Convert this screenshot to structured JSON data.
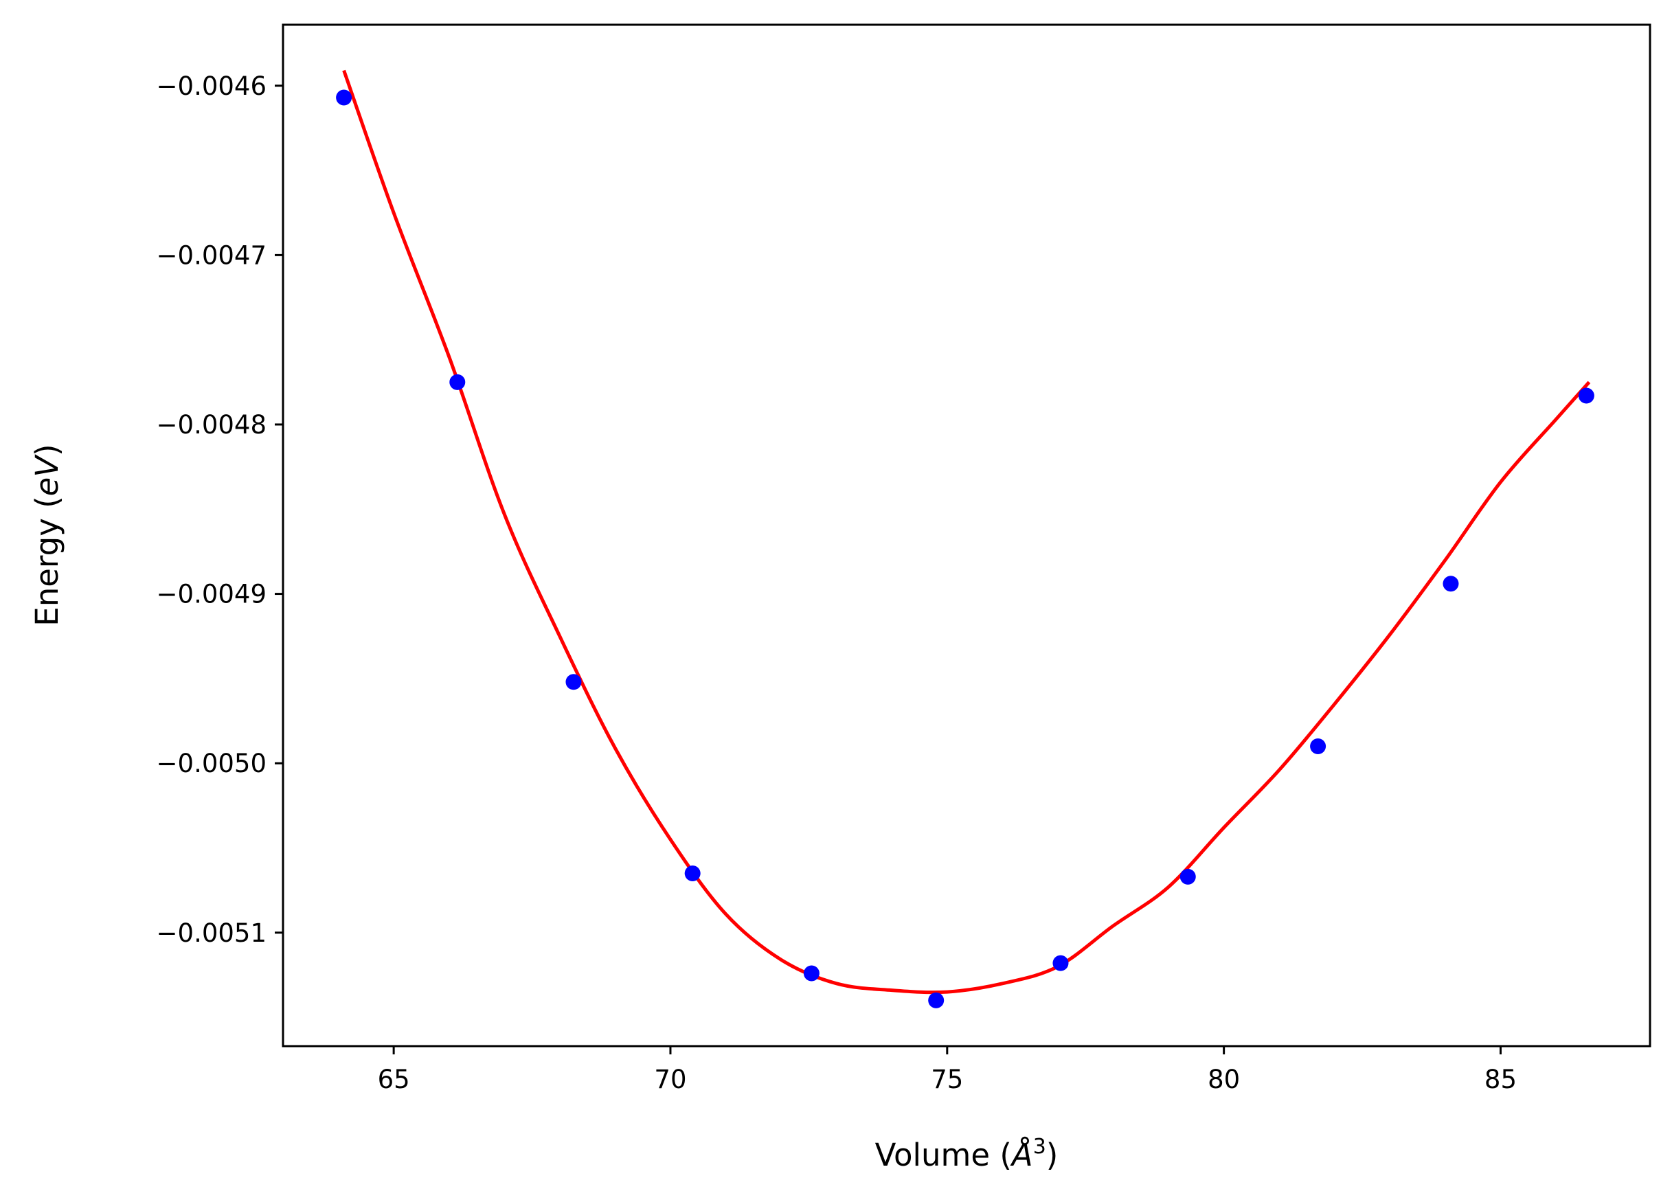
{
  "chart_data": {
    "type": "scatter",
    "title": "",
    "xlabel_main": "Volume (",
    "xlabel_symbol": "Å",
    "xlabel_sup": "3",
    "xlabel_close": ")",
    "ylabel_main": "Energy (",
    "ylabel_symbol": "eV",
    "ylabel_close": ")",
    "xlim": [
      63.0,
      87.7
    ],
    "ylim": [
      -0.005167,
      -0.004564
    ],
    "x_ticks": [
      {
        "value": 65,
        "label": "65"
      },
      {
        "value": 70,
        "label": "70"
      },
      {
        "value": 75,
        "label": "75"
      },
      {
        "value": 80,
        "label": "80"
      },
      {
        "value": 85,
        "label": "85"
      }
    ],
    "y_ticks": [
      {
        "value": -0.0046,
        "label": "−0.0046"
      },
      {
        "value": -0.0047,
        "label": "−0.0047"
      },
      {
        "value": -0.0048,
        "label": "−0.0048"
      },
      {
        "value": -0.0049,
        "label": "−0.0049"
      },
      {
        "value": -0.005,
        "label": "−0.0050"
      },
      {
        "value": -0.0051,
        "label": "−0.0051"
      }
    ],
    "grid": false,
    "series": [
      {
        "kind": "points",
        "color": "#0000ff",
        "x": [
          64.1,
          66.15,
          68.25,
          70.4,
          72.55,
          74.8,
          77.05,
          79.35,
          81.7,
          84.1,
          86.55
        ],
        "y": [
          -0.004607,
          -0.004775,
          -0.004952,
          -0.005065,
          -0.005124,
          -0.00514,
          -0.005118,
          -0.005067,
          -0.00499,
          -0.004894,
          -0.004783
        ]
      },
      {
        "kind": "fit-line",
        "color": "#ff0000",
        "x": [
          64.1,
          65.0,
          66.0,
          67.0,
          68.0,
          69.0,
          70.0,
          71.0,
          72.0,
          73.0,
          74.0,
          75.0,
          76.0,
          77.0,
          78.0,
          79.0,
          80.0,
          81.0,
          82.0,
          83.0,
          84.0,
          85.0,
          86.0,
          86.6
        ],
        "y": [
          -0.004591,
          -0.004675,
          -0.00476,
          -0.004853,
          -0.004925,
          -0.004991,
          -0.005045,
          -0.005089,
          -0.005116,
          -0.00513,
          -0.005134,
          -0.005135,
          -0.00513,
          -0.00512,
          -0.005096,
          -0.005073,
          -0.005038,
          -0.005004,
          -0.004965,
          -0.004924,
          -0.00488,
          -0.004834,
          -0.004797,
          -0.004775
        ]
      }
    ]
  }
}
